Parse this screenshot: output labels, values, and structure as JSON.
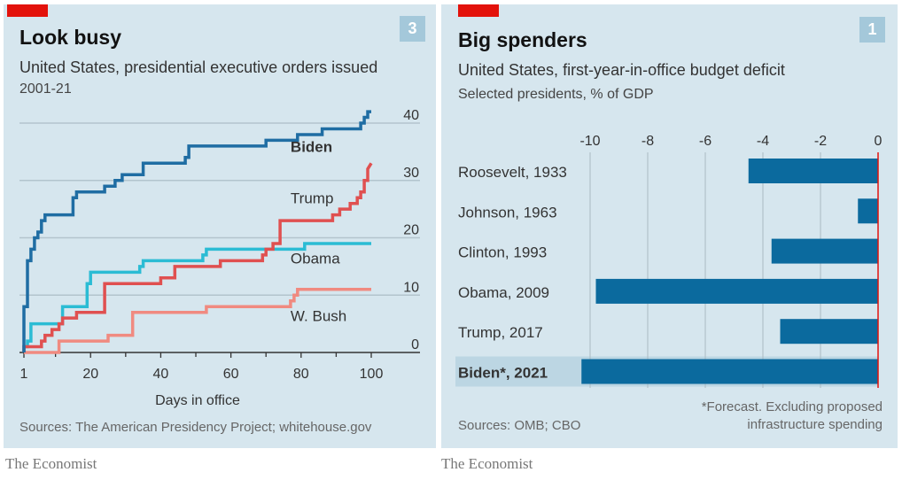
{
  "charts": [
    {
      "badge": "3",
      "title": "Look busy",
      "subtitle": "United States, presidential executive orders issued",
      "subsubtitle": "2001-21",
      "source": "Sources: The American Presidency Project; whitehouse.gov",
      "brand": "The Economist"
    },
    {
      "badge": "1",
      "title": "Big spenders",
      "subtitle": "United States, first-year-in-office budget deficit",
      "subsubtitle": "Selected presidents, % of GDP",
      "source": "Sources: OMB; CBO",
      "footnote_line1": "*Forecast. Excluding proposed",
      "footnote_line2": "infrastructure spending",
      "brand": "The Economist"
    }
  ],
  "chart_data": [
    {
      "type": "line",
      "step": true,
      "title": "Look busy",
      "subtitle": "United States, presidential executive orders issued",
      "xlabel": "Days in office",
      "ylabel": "",
      "xlim": [
        1,
        100
      ],
      "ylim": [
        0,
        40
      ],
      "xticks": [
        1,
        20,
        40,
        60,
        80,
        100
      ],
      "xminor": [
        10,
        30,
        50,
        70,
        90
      ],
      "yticks": [
        0,
        10,
        20,
        30,
        40
      ],
      "grid": true,
      "series": [
        {
          "name": "Biden",
          "color": "#1f6da3",
          "bold": true,
          "x": [
            1,
            1,
            2,
            2,
            3,
            3,
            4,
            4,
            5,
            5,
            6,
            6,
            7,
            7,
            15,
            15,
            16,
            16,
            24,
            24,
            27,
            27,
            29,
            29,
            35,
            35,
            47,
            47,
            48,
            48,
            70,
            70,
            79,
            79,
            86,
            86,
            97,
            97,
            98,
            98,
            99,
            99,
            100
          ],
          "y": [
            0,
            8,
            8,
            16,
            16,
            18,
            18,
            20,
            20,
            21,
            21,
            23,
            23,
            24,
            24,
            27,
            27,
            28,
            28,
            29,
            29,
            30,
            30,
            31,
            31,
            33,
            33,
            34,
            34,
            36,
            36,
            37,
            37,
            38,
            38,
            39,
            39,
            40,
            40,
            41,
            41,
            42,
            42
          ]
        },
        {
          "name": "Trump",
          "color": "#e05050",
          "x": [
            1,
            1,
            6,
            6,
            7,
            7,
            9,
            9,
            11,
            11,
            12,
            12,
            16,
            16,
            24,
            24,
            40,
            40,
            44,
            44,
            57,
            57,
            69,
            69,
            70,
            70,
            72,
            72,
            74,
            74,
            89,
            89,
            91,
            91,
            94,
            94,
            96,
            96,
            97,
            97,
            98,
            98,
            99,
            99,
            100
          ],
          "y": [
            0,
            1,
            1,
            2,
            2,
            3,
            3,
            4,
            4,
            5,
            5,
            6,
            6,
            7,
            7,
            12,
            12,
            13,
            13,
            15,
            15,
            16,
            16,
            17,
            17,
            18,
            18,
            19,
            19,
            23,
            23,
            24,
            24,
            25,
            25,
            26,
            26,
            27,
            27,
            28,
            28,
            30,
            30,
            32,
            33
          ]
        },
        {
          "name": "Obama",
          "color": "#2bbcd4",
          "x": [
            1,
            1,
            2,
            2,
            3,
            3,
            12,
            12,
            19,
            19,
            20,
            20,
            34,
            34,
            35,
            35,
            52,
            52,
            53,
            53,
            81,
            81,
            100
          ],
          "y": [
            0,
            1,
            1,
            2,
            2,
            5,
            5,
            8,
            8,
            12,
            12,
            14,
            14,
            15,
            15,
            16,
            16,
            17,
            17,
            18,
            18,
            19,
            19
          ]
        },
        {
          "name": "W. Bush",
          "color": "#f08a80",
          "x": [
            1,
            1,
            11,
            11,
            25,
            25,
            32,
            32,
            53,
            53,
            77,
            77,
            78,
            78,
            79,
            79,
            100
          ],
          "y": [
            0,
            0,
            0,
            2,
            2,
            3,
            3,
            7,
            7,
            8,
            8,
            9,
            9,
            10,
            10,
            11,
            11
          ]
        }
      ],
      "labels": [
        {
          "series": "Biden",
          "text": "Biden",
          "at_x": 77,
          "at_y": 35
        },
        {
          "series": "Trump",
          "text": "Trump",
          "at_x": 77,
          "at_y": 26
        },
        {
          "series": "Obama",
          "text": "Obama",
          "at_x": 77,
          "at_y": 15.5
        },
        {
          "series": "W. Bush",
          "text": "W. Bush",
          "at_x": 77,
          "at_y": 5.5
        }
      ]
    },
    {
      "type": "bar",
      "orientation": "horizontal",
      "title": "Big spenders",
      "subtitle": "United States, first-year-in-office budget deficit",
      "xlabel": "",
      "ylabel": "Selected presidents, % of GDP",
      "xlim": [
        -10.5,
        0
      ],
      "xticks": [
        -10,
        -8,
        -6,
        -4,
        -2,
        0
      ],
      "grid": true,
      "categories": [
        "Roosevelt, 1933",
        "Johnson, 1963",
        "Clinton, 1993",
        "Obama, 2009",
        "Trump, 2017",
        "Biden*, 2021"
      ],
      "values": [
        -4.5,
        -0.7,
        -3.7,
        -9.8,
        -3.4,
        -10.3
      ],
      "highlight": "Biden*, 2021",
      "bar_color": "#0b6a9e",
      "zero_line_color": "#e3120b"
    }
  ]
}
